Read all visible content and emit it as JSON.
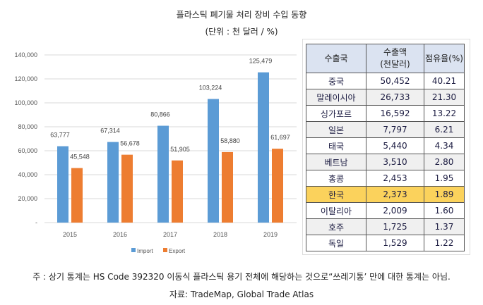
{
  "title": "플라스틱 폐기물 처리 장비 수입 동향",
  "subtitle": "(단위 : 천 달러 / %)",
  "chart_data": {
    "type": "bar",
    "categories": [
      "2015",
      "2016",
      "2017",
      "2018",
      "2019"
    ],
    "series": [
      {
        "name": "Import",
        "color": "#5b9bd5",
        "values": [
          63777,
          67314,
          80866,
          103224,
          125479
        ],
        "labels": [
          "63,777",
          "67,314",
          "80,866",
          "103,224",
          "125,479"
        ]
      },
      {
        "name": "Export",
        "color": "#ed7d31",
        "values": [
          45548,
          56678,
          51905,
          58880,
          61697
        ],
        "labels": [
          "45,548",
          "56,678",
          "51,905",
          "58,880",
          "61,697"
        ]
      }
    ],
    "ylim": [
      0,
      140000
    ],
    "yticks": [
      0,
      20000,
      40000,
      60000,
      80000,
      100000,
      120000,
      140000
    ],
    "ytick_labels": [
      "-",
      "20,000",
      "40,000",
      "60,000",
      "80,000",
      "100,000",
      "120,000",
      "140,000"
    ],
    "grid": true,
    "legend": "bottom"
  },
  "table": {
    "headers": [
      "수출국",
      "수출액\n(천달러)",
      "점유율(%)"
    ],
    "rows": [
      [
        "중국",
        "50,452",
        "40.21"
      ],
      [
        "말레이시아",
        "26,733",
        "21.30"
      ],
      [
        "싱가포르",
        "16,592",
        "13.22"
      ],
      [
        "일본",
        "7,797",
        "6.21"
      ],
      [
        "태국",
        "5,440",
        "4.34"
      ],
      [
        "베트남",
        "3,510",
        "2.80"
      ],
      [
        "홍콩",
        "2,453",
        "1.95"
      ],
      [
        "한국",
        "2,373",
        "1.89"
      ],
      [
        "이탈리아",
        "2,009",
        "1.60"
      ],
      [
        "호주",
        "1,725",
        "1.37"
      ],
      [
        "독일",
        "1,529",
        "1.22"
      ]
    ],
    "highlight_row": 7
  },
  "footnote": "주 :  상기 통계는 HS Code 392320 이동식 플라스틱 용기 전체에 해당하는 것으로“쓰레기통’ 만에 대한 통계는 아님.",
  "source": "자료: TradeMap, Global Trade Atlas"
}
